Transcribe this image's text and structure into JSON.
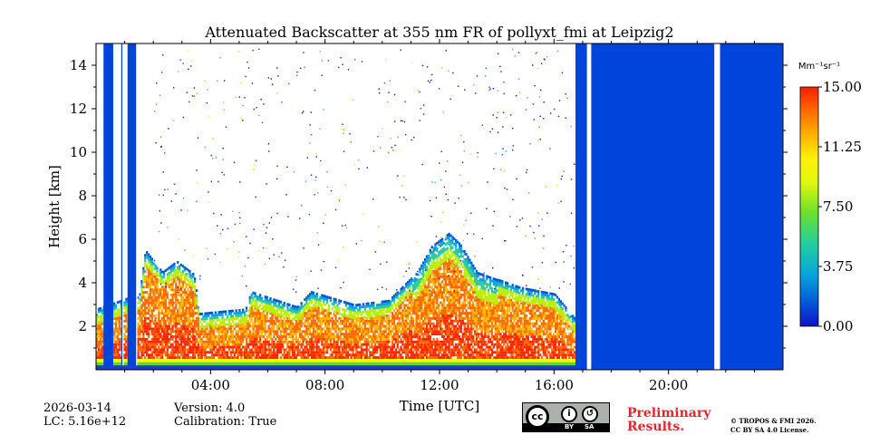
{
  "chart_data": {
    "type": "heatmap",
    "title": "Attenuated Backscatter at 355 nm FR of pollyxt_fmi at Leipzig2",
    "xlabel": "Time [UTC]",
    "ylabel": "Height [km]",
    "xlim_hours": [
      0,
      24
    ],
    "ylim_km": [
      0,
      15
    ],
    "x_ticks": [
      {
        "hour": 4,
        "label": "04:00"
      },
      {
        "hour": 8,
        "label": "08:00"
      },
      {
        "hour": 12,
        "label": "12:00"
      },
      {
        "hour": 16,
        "label": "16:00"
      },
      {
        "hour": 20,
        "label": "20:00"
      }
    ],
    "y_ticks": [
      {
        "km": 2,
        "label": "2"
      },
      {
        "km": 4,
        "label": "4"
      },
      {
        "km": 6,
        "label": "6"
      },
      {
        "km": 8,
        "label": "8"
      },
      {
        "km": 10,
        "label": "10"
      },
      {
        "km": 12,
        "label": "12"
      },
      {
        "km": 14,
        "label": "14"
      }
    ],
    "colorbar": {
      "unit": "Mm⁻¹sr⁻¹",
      "range": [
        0,
        15
      ],
      "ticks": [
        {
          "value": 0,
          "label": "0.00"
        },
        {
          "value": 3.75,
          "label": "3.75"
        },
        {
          "value": 7.5,
          "label": "7.50"
        },
        {
          "value": 11.25,
          "label": "11.25"
        },
        {
          "value": 15,
          "label": "15.00"
        }
      ]
    },
    "no_data_periods_hours": [
      [
        0.26,
        0.6
      ],
      [
        0.88,
        0.92
      ],
      [
        1.1,
        1.4
      ],
      [
        16.75,
        17.15
      ],
      [
        17.3,
        21.6
      ],
      [
        21.8,
        24
      ]
    ],
    "aerosol_layer_top_km": [
      {
        "hour": 0,
        "top": 2.8
      },
      {
        "hour": 1.5,
        "top": 3.5
      },
      {
        "hour": 1.7,
        "top": 5.5
      },
      {
        "hour": 2.3,
        "top": 4.5
      },
      {
        "hour": 2.8,
        "top": 5.0
      },
      {
        "hour": 3.4,
        "top": 4.4
      },
      {
        "hour": 3.6,
        "top": 2.6
      },
      {
        "hour": 5.2,
        "top": 2.8
      },
      {
        "hour": 5.4,
        "top": 3.6
      },
      {
        "hour": 7.0,
        "top": 2.9
      },
      {
        "hour": 7.5,
        "top": 3.6
      },
      {
        "hour": 9.0,
        "top": 3.0
      },
      {
        "hour": 10.2,
        "top": 3.2
      },
      {
        "hour": 11.2,
        "top": 4.5
      },
      {
        "hour": 11.7,
        "top": 5.7
      },
      {
        "hour": 12.3,
        "top": 6.3
      },
      {
        "hour": 12.7,
        "top": 5.8
      },
      {
        "hour": 13.3,
        "top": 4.5
      },
      {
        "hour": 14.8,
        "top": 3.8
      },
      {
        "hour": 16.0,
        "top": 3.5
      },
      {
        "hour": 16.75,
        "top": 2.3
      }
    ]
  },
  "footer": {
    "date": "2026-03-14",
    "lc": "LC: 5.16e+12",
    "version": "Version: 4.0",
    "calibration": "Calibration: True",
    "preliminary_line1": "Preliminary",
    "preliminary_line2": "Results.",
    "copyright_line1": "© TROPOS & FMI 2026.",
    "copyright_line2": "CC BY SA 4.0 License.",
    "cc_by": "BY",
    "cc_sa": "SA"
  },
  "colors": {
    "no_data": "#0045db",
    "colormap": [
      "#1a10c8",
      "#0059d6",
      "#0aa3d9",
      "#2ac8a3",
      "#60d838",
      "#b9ee0c",
      "#fff60b",
      "#ffb400",
      "#ff6900",
      "#ff2600"
    ]
  }
}
